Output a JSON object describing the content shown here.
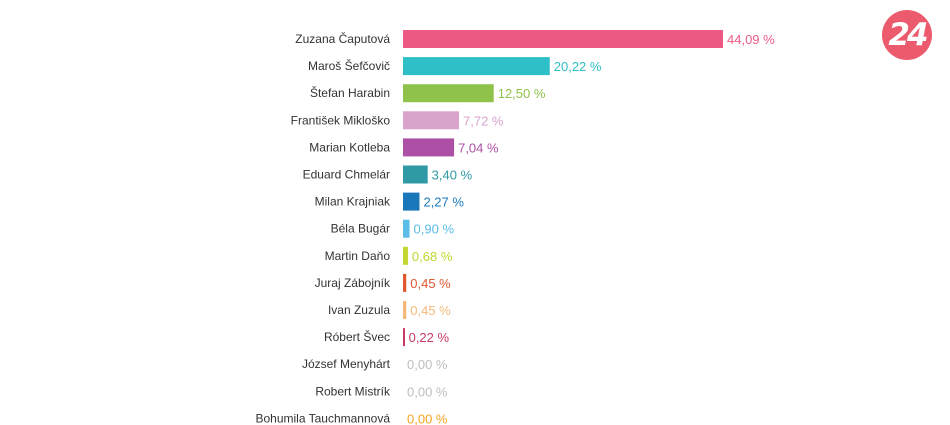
{
  "logo": {
    "text": "24",
    "color": "#ec5a6e"
  },
  "chart_data": {
    "type": "bar",
    "orientation": "horizontal",
    "categories": [
      "Zuzana Čaputová",
      "Maroš Šefčovič",
      "Štefan Harabin",
      "František Mikloško",
      "Marian Kotleba",
      "Eduard Chmelár",
      "Milan Krajniak",
      "Béla Bugár",
      "Martin Daňo",
      "Juraj Zábojník",
      "Ivan Zuzula",
      "Róbert Švec",
      "József Menyhárt",
      "Robert Mistrík",
      "Bohumila Tauchmannová"
    ],
    "values": [
      44.09,
      20.22,
      12.5,
      7.72,
      7.04,
      3.4,
      2.27,
      0.9,
      0.68,
      0.45,
      0.45,
      0.22,
      0.0,
      0.0,
      0.0
    ],
    "value_labels": [
      "44,09 %",
      "20,22 %",
      "12,50 %",
      "7,72 %",
      "7,04 %",
      "3,40 %",
      "2,27 %",
      "0,90 %",
      "0,68 %",
      "0,45 %",
      "0,45 %",
      "0,22 %",
      "0,00 %",
      "0,00 %",
      "0,00 %"
    ],
    "colors": [
      "#ec5a83",
      "#2fbfc6",
      "#8fc24a",
      "#d9a3cc",
      "#ad50a5",
      "#2f9aa5",
      "#1a77ba",
      "#5bbde8",
      "#c3d62f",
      "#e1572e",
      "#f5b87a",
      "#c93a64",
      "#bdbdbd",
      "#bdbdbd",
      "#f5a623"
    ],
    "xlim": [
      0,
      44.09
    ],
    "grid": false,
    "legend": "none"
  }
}
